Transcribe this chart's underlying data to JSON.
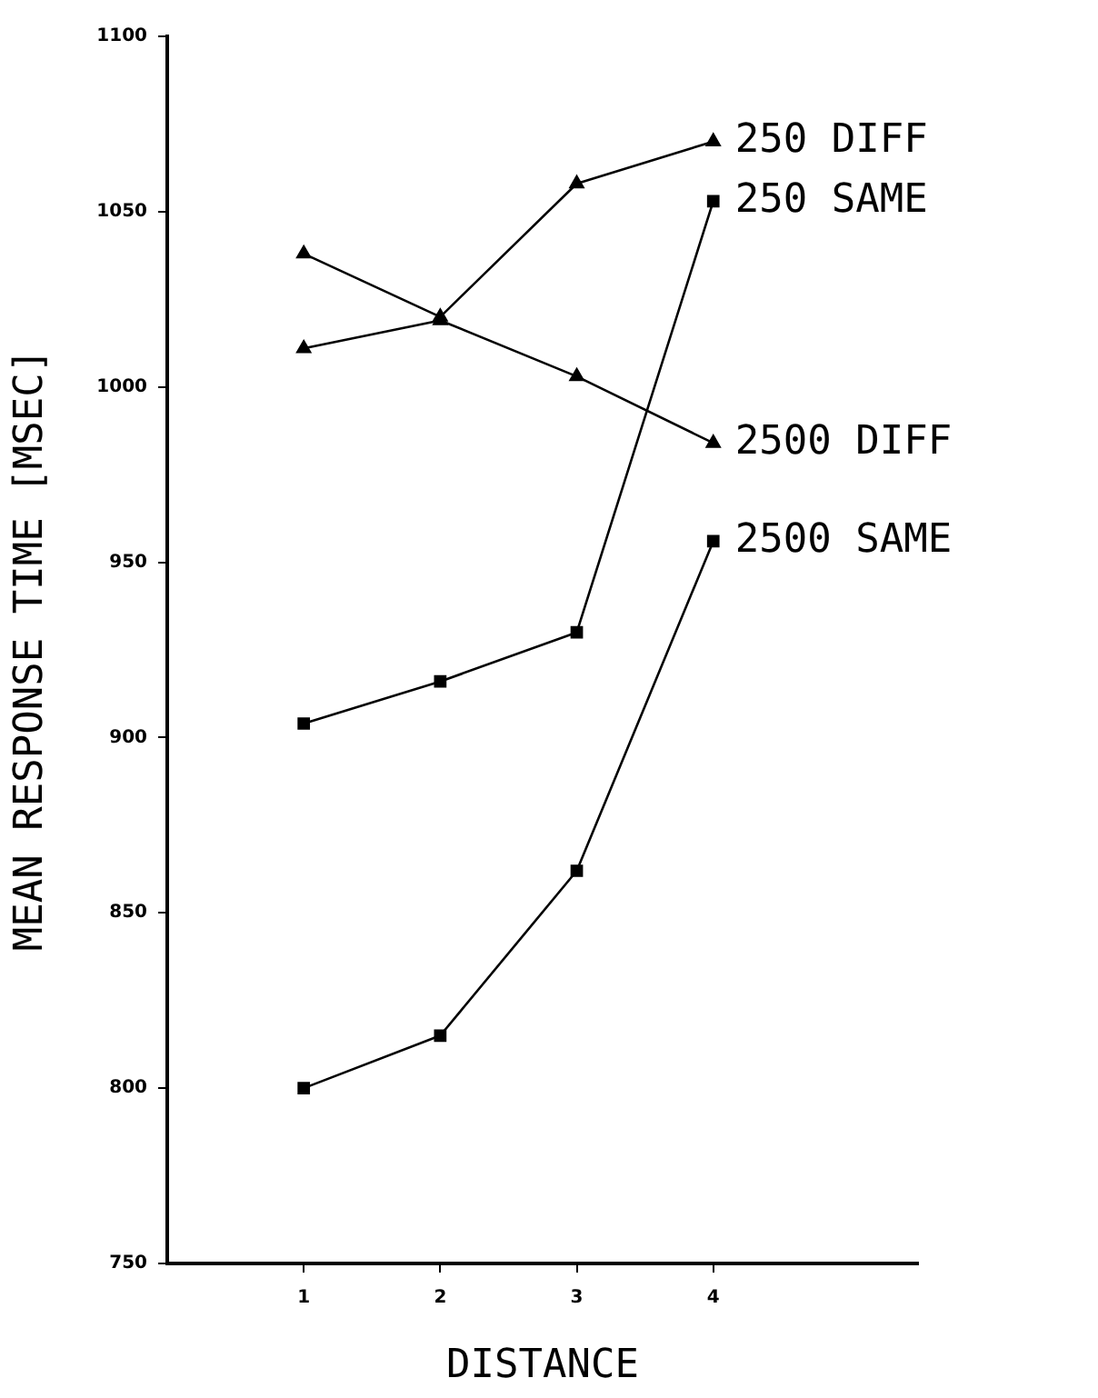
{
  "chart_data": {
    "type": "line",
    "xlabel": "DISTANCE",
    "ylabel": "MEAN RESPONSE TIME [MSEC]",
    "x": [
      1,
      2,
      3,
      4
    ],
    "xlim": [
      0,
      5.5
    ],
    "xticks": [
      1,
      2,
      3,
      4
    ],
    "ylim": [
      750,
      1100
    ],
    "yticks": [
      750,
      800,
      850,
      900,
      950,
      1000,
      1050,
      1100
    ],
    "grid": false,
    "legend": false,
    "line_style": "solid",
    "series": [
      {
        "name": "250 DIFF",
        "color": "#000000",
        "marker": "triangle",
        "values": [
          1038,
          1020,
          1058,
          1070
        ]
      },
      {
        "name": "250 SAME",
        "color": "#000000",
        "marker": "square",
        "values": [
          904,
          916,
          930,
          1053
        ]
      },
      {
        "name": "2500 DIFF",
        "color": "#000000",
        "marker": "triangle",
        "values": [
          1011,
          1019,
          1003,
          984
        ]
      },
      {
        "name": "2500 SAME",
        "color": "#000000",
        "marker": "square",
        "values": [
          800,
          815,
          862,
          956
        ]
      }
    ]
  }
}
